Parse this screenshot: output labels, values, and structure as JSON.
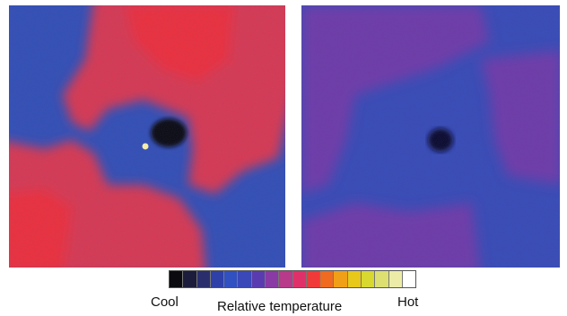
{
  "legend": {
    "low_label": "Cool",
    "title": "Relative temperature",
    "high_label": "Hot",
    "colors": [
      "#0a0a10",
      "#1c1c3c",
      "#2a2e6c",
      "#2f40a8",
      "#3150c2",
      "#3a48b8",
      "#5a3cb0",
      "#8a3aa4",
      "#b83a8a",
      "#e0306a",
      "#f03a3a",
      "#f06a20",
      "#f0a018",
      "#e8c818",
      "#d8d830",
      "#dde070",
      "#ececa8",
      "#ffffff"
    ]
  },
  "panels": {
    "left": {
      "name": "thermal-image-left",
      "base_color": "#3551b8",
      "warm_color": "#d93a55",
      "hot_color": "#ee3340",
      "core_color": "#111118",
      "spot_color": "#fff4b0"
    },
    "right": {
      "name": "thermal-image-right",
      "base_color": "#3a4db8",
      "warm_color": "#7a3aa8",
      "dark_color": "#0e1030"
    }
  }
}
